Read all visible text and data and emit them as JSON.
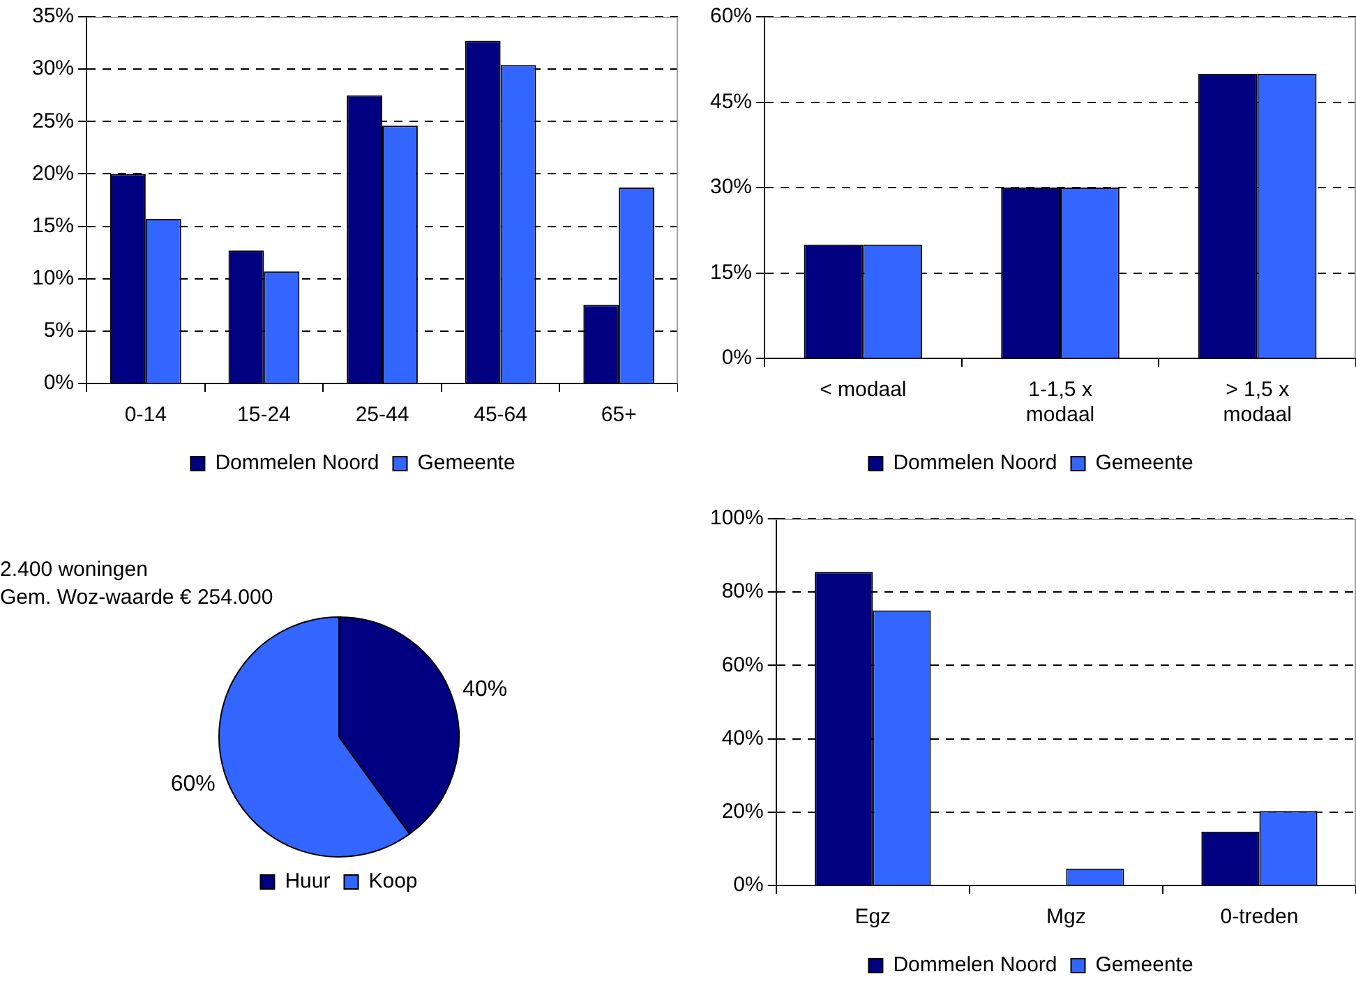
{
  "chart_data": [
    {
      "type": "bar",
      "categories": [
        "0-14",
        "15-24",
        "25-44",
        "45-64",
        "65+"
      ],
      "series": [
        {
          "name": "Dommelen Noord",
          "color": "#000080",
          "values": [
            20,
            12.7,
            27.5,
            32.7,
            7.5
          ]
        },
        {
          "name": "Gemeente",
          "color": "#3366ff",
          "values": [
            15.7,
            10.7,
            24.6,
            30.4,
            18.7
          ]
        }
      ],
      "ylim": [
        0,
        35
      ],
      "yticks": [
        {
          "value": 0,
          "label": "0%"
        },
        {
          "value": 5,
          "label": "5%"
        },
        {
          "value": 10,
          "label": "10%"
        },
        {
          "value": 15,
          "label": "15%"
        },
        {
          "value": 20,
          "label": "20%"
        },
        {
          "value": 25,
          "label": "25%"
        },
        {
          "value": 30,
          "label": "30%"
        },
        {
          "value": 35,
          "label": "35%"
        }
      ],
      "grid": "y",
      "legend": "bottom"
    },
    {
      "type": "bar",
      "categories": [
        "< modaal",
        "1-1,5 x modaal",
        "> 1,5 x modaal"
      ],
      "series": [
        {
          "name": "Dommelen Noord",
          "color": "#000080",
          "values": [
            20,
            30,
            50
          ]
        },
        {
          "name": "Gemeente",
          "color": "#3366ff",
          "values": [
            20,
            30,
            50
          ]
        }
      ],
      "ylim": [
        0,
        60
      ],
      "yticks": [
        {
          "value": 0,
          "label": "0%"
        },
        {
          "value": 15,
          "label": "15%"
        },
        {
          "value": 30,
          "label": "30%"
        },
        {
          "value": 45,
          "label": "45%"
        },
        {
          "value": 60,
          "label": "60%"
        }
      ],
      "grid": "y",
      "legend": "bottom"
    },
    {
      "type": "pie",
      "title": "2.400 woningen",
      "subtitle": "Gem. Woz-waarde € 254.000",
      "categories": [
        "Huur",
        "Koop"
      ],
      "values": [
        40,
        60
      ],
      "colors": [
        "#000080",
        "#3366ff"
      ],
      "value_labels": [
        "40%",
        "60%"
      ],
      "legend": "bottom"
    },
    {
      "type": "bar",
      "categories": [
        "Egz",
        "Mgz",
        "0-treden"
      ],
      "series": [
        {
          "name": "Dommelen Noord",
          "color": "#000080",
          "values": [
            85.5,
            0,
            14.7
          ]
        },
        {
          "name": "Gemeente",
          "color": "#3366ff",
          "values": [
            75,
            4.6,
            20.3
          ]
        }
      ],
      "ylim": [
        0,
        100
      ],
      "yticks": [
        {
          "value": 0,
          "label": "0%"
        },
        {
          "value": 20,
          "label": "20%"
        },
        {
          "value": 40,
          "label": "40%"
        },
        {
          "value": 60,
          "label": "60%"
        },
        {
          "value": 80,
          "label": "80%"
        },
        {
          "value": 100,
          "label": "100%"
        }
      ],
      "grid": "y",
      "legend": "bottom"
    }
  ]
}
